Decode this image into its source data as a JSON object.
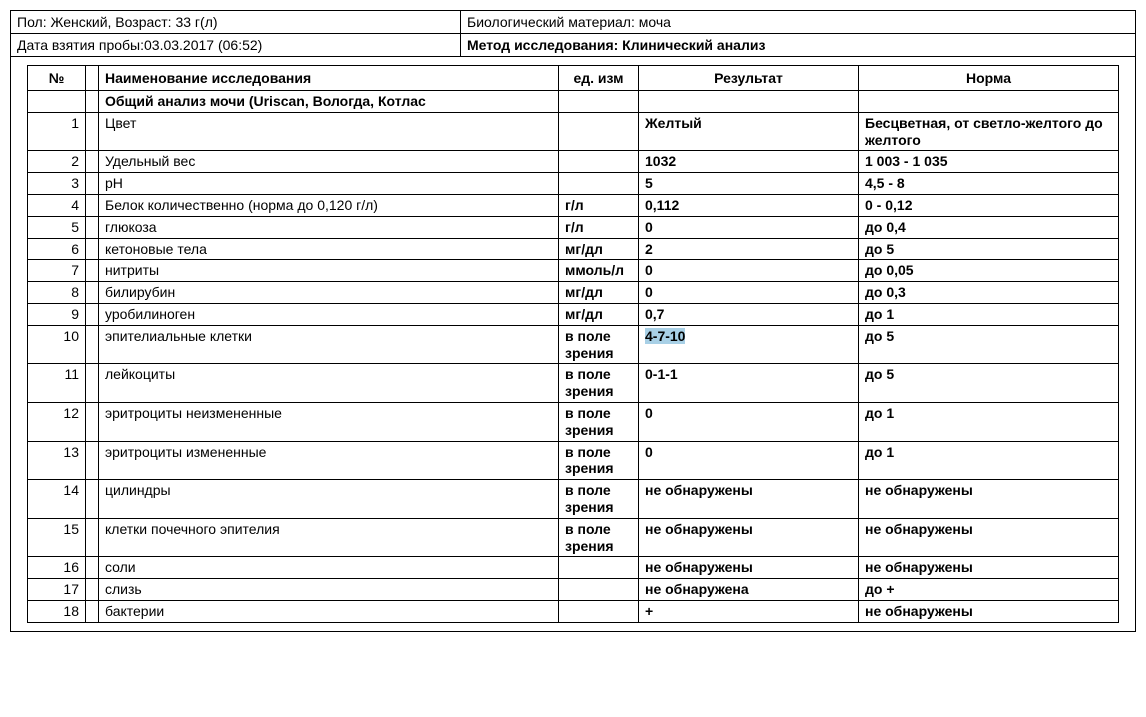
{
  "meta": {
    "sex_age": "Пол: Женский, Возраст: 33 г(л)",
    "material": "Биологический материал: моча",
    "sample_date": "Дата взятия пробы:03.03.2017 (06:52)",
    "method": "Метод исследования: Клинический анализ"
  },
  "headers": {
    "num": "№",
    "name": "Наименование исследования",
    "unit": "ед. изм",
    "result": "Результат",
    "norm": "Норма"
  },
  "section_title": "Общий анализ мочи (Uriscan, Вологда, Котлас",
  "rows": [
    {
      "n": "1",
      "name": "Цвет",
      "unit": "",
      "result": "Желтый",
      "norm": "Бесцветная, от светло-желтого до желтого",
      "highlight": false
    },
    {
      "n": "2",
      "name": "Удельный вес",
      "unit": "",
      "result": "1032",
      "norm": "1 003 - 1 035",
      "highlight": false
    },
    {
      "n": "3",
      "name": "pH",
      "unit": "",
      "result": "5",
      "norm": "4,5 - 8",
      "highlight": false
    },
    {
      "n": "4",
      "name": "Белок количественно (норма до 0,120 г/л)",
      "unit": "г/л",
      "result": "0,112",
      "norm": "0 - 0,12",
      "highlight": false
    },
    {
      "n": "5",
      "name": "глюкоза",
      "unit": "г/л",
      "result": "0",
      "norm": "до 0,4",
      "highlight": false
    },
    {
      "n": "6",
      "name": "кетоновые тела",
      "unit": "мг/дл",
      "result": "2",
      "norm": "до 5",
      "highlight": false
    },
    {
      "n": "7",
      "name": "нитриты",
      "unit": "ммоль/л",
      "result": "0",
      "norm": "до 0,05",
      "highlight": false
    },
    {
      "n": "8",
      "name": "билирубин",
      "unit": "мг/дл",
      "result": "0",
      "norm": "до 0,3",
      "highlight": false
    },
    {
      "n": "9",
      "name": "уробилиноген",
      "unit": "мг/дл",
      "result": "0,7",
      "norm": "до 1",
      "highlight": false
    },
    {
      "n": "10",
      "name": "эпителиальные клетки",
      "unit": "в поле зрения",
      "result": "4-7-10",
      "norm": "до 5",
      "highlight": true
    },
    {
      "n": "11",
      "name": "лейкоциты",
      "unit": "в поле зрения",
      "result": "0-1-1",
      "norm": "до 5",
      "highlight": false
    },
    {
      "n": "12",
      "name": "эритроциты неизмененные",
      "unit": "в поле зрения",
      "result": "0",
      "norm": "до 1",
      "highlight": false
    },
    {
      "n": "13",
      "name": "эритроциты измененные",
      "unit": "в поле зрения",
      "result": "0",
      "norm": "до 1",
      "highlight": false
    },
    {
      "n": "14",
      "name": "цилиндры",
      "unit": "в поле зрения",
      "result": "не обнаружены",
      "norm": "не обнаружены",
      "highlight": false
    },
    {
      "n": "15",
      "name": "клетки почечного эпителия",
      "unit": "в поле зрения",
      "result": "не обнаружены",
      "norm": "не обнаружены",
      "highlight": false
    },
    {
      "n": "16",
      "name": "соли",
      "unit": "",
      "result": "не обнаружены",
      "norm": "не обнаружены",
      "highlight": false
    },
    {
      "n": "17",
      "name": "слизь",
      "unit": "",
      "result": "не обнаружена",
      "norm": "до +",
      "highlight": false
    },
    {
      "n": "18",
      "name": "бактерии",
      "unit": "",
      "result": "+",
      "norm": "не обнаружены",
      "highlight": false
    }
  ],
  "style": {
    "highlight_bg": "#a8d0e6",
    "border_color": "#000000",
    "font_family": "Arial",
    "font_size_pt": 11
  }
}
